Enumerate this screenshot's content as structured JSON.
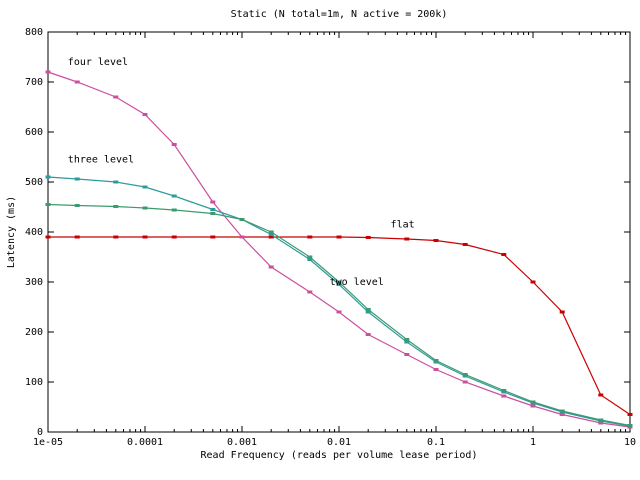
{
  "chart_data": {
    "type": "line",
    "title": "Static (N total=1m, N active = 200k)",
    "xlabel": "Read Frequency (reads per volume lease period)",
    "ylabel": "Latency (ms)",
    "x_scale": "log",
    "xlim": [
      1e-05,
      10
    ],
    "ylim": [
      0,
      800
    ],
    "x_tick_labels": [
      "1e-05",
      "0.0001",
      "0.001",
      "0.01",
      "0.1",
      "1",
      "10"
    ],
    "x_tick_values": [
      1e-05,
      0.0001,
      0.001,
      0.01,
      0.1,
      1,
      10
    ],
    "y_tick_values": [
      0,
      100,
      200,
      300,
      400,
      500,
      600,
      700,
      800
    ],
    "x": [
      1e-05,
      2e-05,
      5e-05,
      0.0001,
      0.0002,
      0.0005,
      0.001,
      0.002,
      0.005,
      0.01,
      0.02,
      0.05,
      0.1,
      0.2,
      0.5,
      1,
      2,
      5,
      10
    ],
    "series": [
      {
        "name": "flat",
        "color": "#cc0000",
        "values": [
          390,
          390,
          390,
          390,
          390,
          390,
          390,
          390,
          390,
          390,
          389,
          386,
          383,
          375,
          355,
          300,
          240,
          74,
          35
        ]
      },
      {
        "name": "four level",
        "color": "#cc4f9f",
        "values": [
          720,
          700,
          670,
          635,
          575,
          460,
          390,
          330,
          280,
          240,
          195,
          155,
          125,
          100,
          72,
          52,
          35,
          18,
          10
        ]
      },
      {
        "name": "three level",
        "color": "#2e9b9b",
        "values": [
          510,
          506,
          500,
          490,
          472,
          445,
          425,
          395,
          345,
          295,
          240,
          180,
          140,
          112,
          80,
          58,
          40,
          22,
          12
        ]
      },
      {
        "name": "two level",
        "color": "#3a9b6f",
        "values": [
          455,
          453,
          451,
          448,
          444,
          437,
          425,
          400,
          350,
          300,
          245,
          185,
          143,
          115,
          83,
          60,
          42,
          24,
          13
        ]
      }
    ],
    "annotations": [
      {
        "text": "four level",
        "x": 1.6e-05,
        "y": 740
      },
      {
        "text": "three level",
        "x": 1.6e-05,
        "y": 545
      },
      {
        "text": "two level",
        "x": 0.008,
        "y": 300
      },
      {
        "text": "flat",
        "x": 0.034,
        "y": 415
      }
    ],
    "legend_position": "inline-labels",
    "grid": false,
    "axis_color": "#000000"
  }
}
